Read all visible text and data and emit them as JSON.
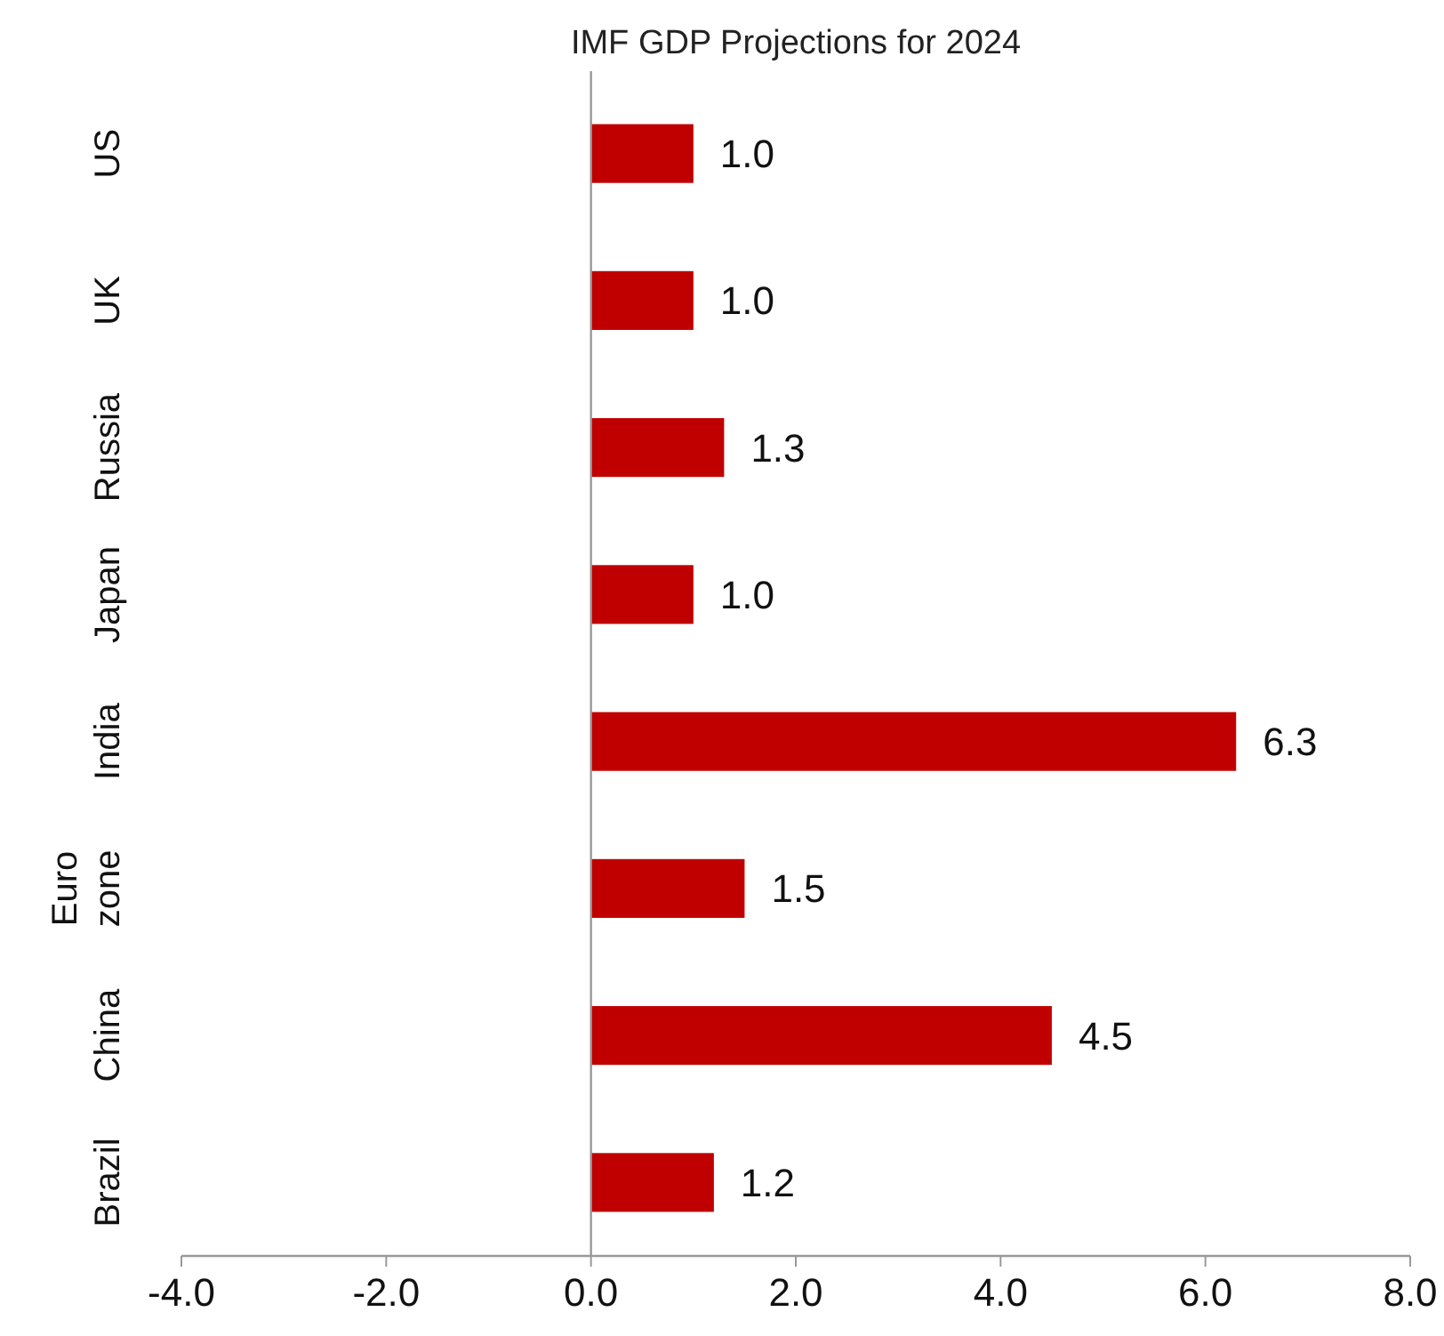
{
  "chart_data": {
    "type": "bar",
    "orientation": "horizontal",
    "title": "IMF GDP Projections for 2024",
    "categories": [
      "US",
      "UK",
      "Russia",
      "Japan",
      "India",
      "Euro zone",
      "China",
      "Brazil"
    ],
    "values": [
      1.0,
      1.0,
      1.3,
      1.0,
      6.3,
      1.5,
      4.5,
      1.2
    ],
    "value_labels": [
      "1.0",
      "1.0",
      "1.3",
      "1.0",
      "6.3",
      "1.5",
      "4.5",
      "1.2"
    ],
    "color": "#c00000",
    "xlim": [
      -4,
      8
    ],
    "xticks": [
      {
        "value": -4,
        "label": "-4.0"
      },
      {
        "value": -2,
        "label": "-2.0"
      },
      {
        "value": 0,
        "label": "0.0"
      },
      {
        "value": 2,
        "label": "2.0"
      },
      {
        "value": 4,
        "label": "4.0"
      },
      {
        "value": 6,
        "label": "6.0"
      },
      {
        "value": 8,
        "label": "8.0"
      }
    ]
  }
}
